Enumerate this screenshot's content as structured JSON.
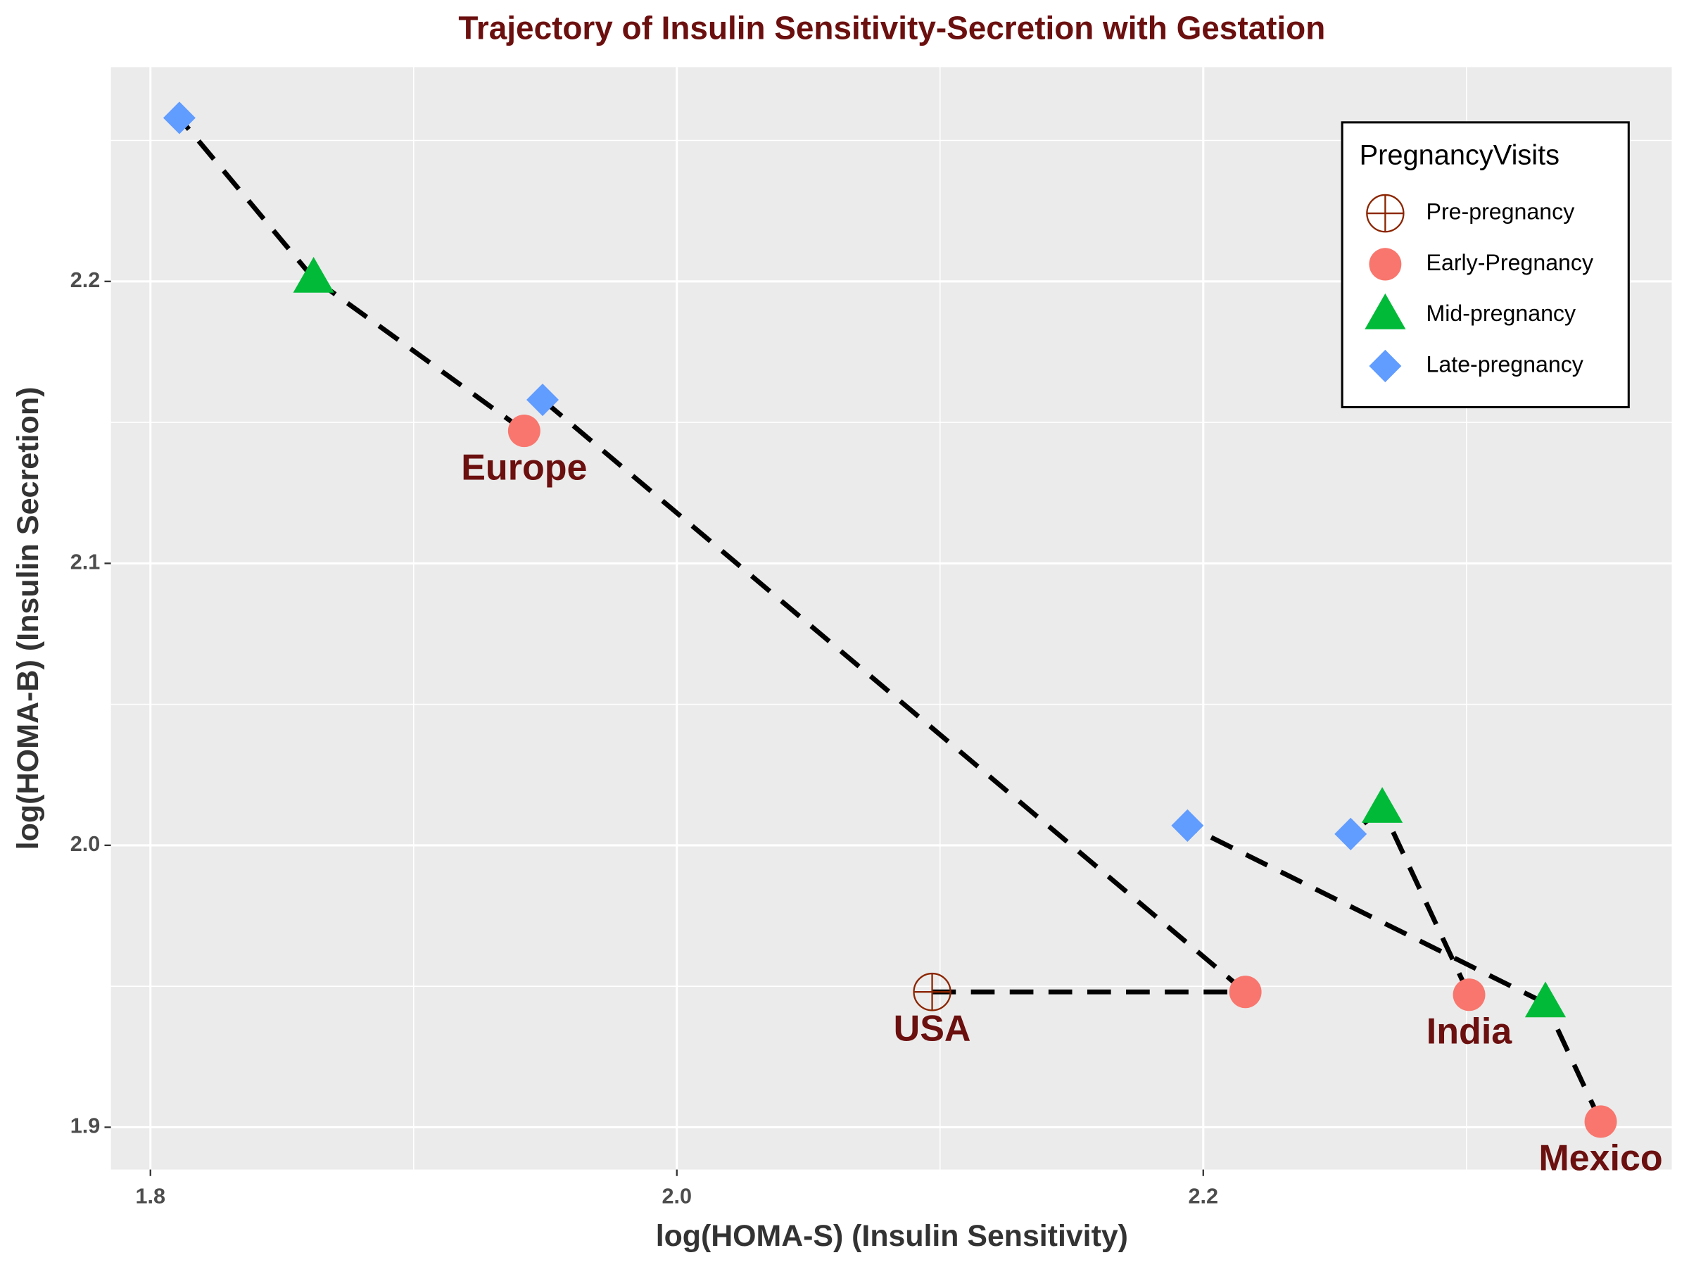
{
  "chart_data": {
    "type": "scatter",
    "title": "Trajectory of Insulin Sensitivity-Secretion with Gestation",
    "x_label": "log(HOMA-S) (Insulin Sensitivity)",
    "y_label": "log(HOMA-B) (Insulin Secretion)",
    "legend_title": "PregnancyVisits",
    "legend_position": "top-right",
    "grid": true,
    "label_color": "#6B0F0F",
    "categories": [
      "USA",
      "Europe",
      "India",
      "Mexico"
    ],
    "xlim": [
      1.785,
      2.378
    ],
    "ylim": [
      1.885,
      2.276
    ],
    "xticks": [
      1.8,
      {
        "value": 2,
        "label": "2.0"
      },
      2.2
    ],
    "yticks": [
      1.9,
      {
        "value": 2,
        "label": "2.0"
      },
      2.1,
      2.2
    ],
    "series": [
      {
        "name": "Pre-pregnancy",
        "color": "#8B2500",
        "marker": "crossed-circle",
        "x": [
          2.097,
          null,
          null,
          null
        ],
        "y": [
          1.948,
          null,
          null,
          null
        ]
      },
      {
        "name": "Early-Pregnancy",
        "color": "#F8766D",
        "marker": "circle",
        "x": [
          2.216,
          1.942,
          2.301,
          2.351
        ],
        "y": [
          1.948,
          2.147,
          1.947,
          1.902
        ]
      },
      {
        "name": "Mid-pregnancy",
        "color": "#00BA38",
        "marker": "triangle",
        "x": [
          null,
          1.862,
          2.268,
          2.33
        ],
        "y": [
          null,
          2.201,
          2.013,
          1.944
        ]
      },
      {
        "name": "Late-pregnancy",
        "color": "#619CFF",
        "marker": "diamond",
        "x": [
          1.949,
          1.811,
          2.256,
          2.194
        ],
        "y": [
          2.158,
          2.258,
          2.004,
          2.007
        ]
      }
    ]
  }
}
